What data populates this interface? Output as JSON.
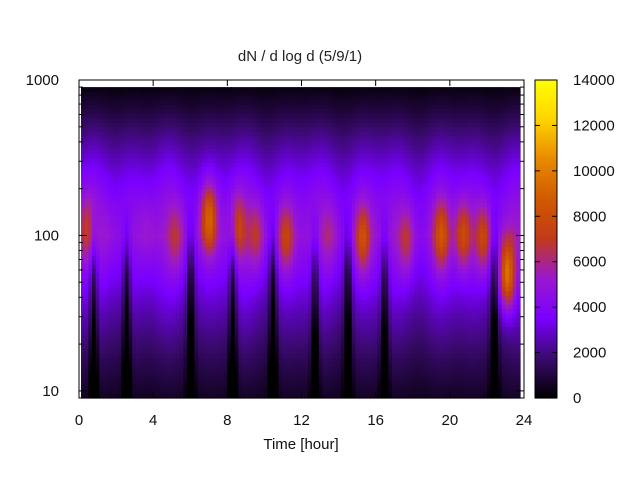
{
  "chart_data": {
    "type": "heatmap",
    "title": "dN / d log d (5/9/1)",
    "xlabel": "Time [hour]",
    "ylabel": "",
    "xlim": [
      0,
      24
    ],
    "ylim": [
      9,
      1000
    ],
    "y_scale": "log",
    "x_ticks": [
      "0",
      "4",
      "8",
      "12",
      "16",
      "20",
      "24"
    ],
    "y_ticks": [
      "10",
      "100",
      "1000"
    ],
    "colorbar": {
      "range": [
        0,
        14000
      ],
      "ticks": [
        "0",
        "2000",
        "4000",
        "6000",
        "8000",
        "10000",
        "12000",
        "14000"
      ],
      "colormap": [
        "#000000",
        "#3a0a6e",
        "#7a00ff",
        "#9a18d0",
        "#c23a1a",
        "#d05a00",
        "#e88a00",
        "#ffd400",
        "#ffff00"
      ]
    },
    "diameter_range": [
      9,
      900
    ],
    "base_profile": {
      "description_points_logd": [
        0.95,
        1.2,
        1.5,
        1.7,
        1.85,
        2.0,
        2.2,
        2.4,
        2.6,
        2.8,
        2.95
      ],
      "values": [
        600,
        1500,
        2800,
        3800,
        4500,
        5200,
        4600,
        3600,
        2400,
        1100,
        300
      ]
    },
    "hotspots": [
      {
        "hour": 0.3,
        "peak_d": 110,
        "value": 7200
      },
      {
        "hour": 1.5,
        "peak_d": 100,
        "value": 5600
      },
      {
        "hour": 3.6,
        "peak_d": 110,
        "value": 5800
      },
      {
        "hour": 5.2,
        "peak_d": 95,
        "value": 6800
      },
      {
        "hour": 7.0,
        "peak_d": 130,
        "value": 9500
      },
      {
        "hour": 8.6,
        "peak_d": 115,
        "value": 7600
      },
      {
        "hour": 9.6,
        "peak_d": 100,
        "value": 7400
      },
      {
        "hour": 11.2,
        "peak_d": 95,
        "value": 7800
      },
      {
        "hour": 13.6,
        "peak_d": 100,
        "value": 6400
      },
      {
        "hour": 15.4,
        "peak_d": 95,
        "value": 8400
      },
      {
        "hour": 17.8,
        "peak_d": 90,
        "value": 7200
      },
      {
        "hour": 19.7,
        "peak_d": 100,
        "value": 8600
      },
      {
        "hour": 20.9,
        "peak_d": 100,
        "value": 8400
      },
      {
        "hour": 22.0,
        "peak_d": 95,
        "value": 8200
      },
      {
        "hour": 23.3,
        "peak_d": 55,
        "value": 9800
      }
    ],
    "dark_columns_hours": [
      0.7,
      2.5,
      6.0,
      8.3,
      10.5,
      12.8,
      14.6,
      16.6,
      22.6
    ]
  }
}
